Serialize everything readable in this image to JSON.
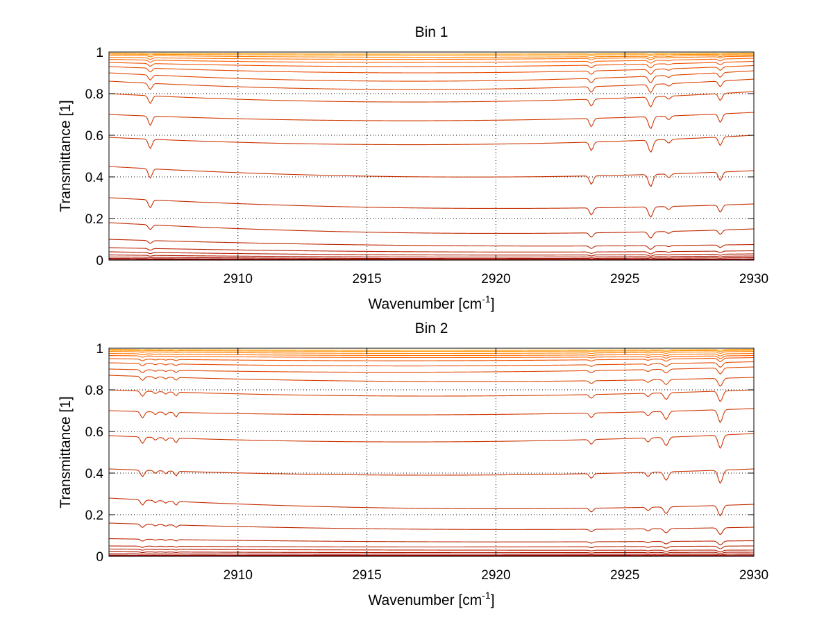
{
  "chart_data": [
    {
      "type": "line",
      "title": "Bin 1",
      "xlabel": "Wavenumber [cm",
      "xlabel_sup": "-1",
      "xlabel_end": "]",
      "ylabel": "Transmittance [1]",
      "xlim": [
        2905,
        2930
      ],
      "ylim": [
        0,
        1
      ],
      "xticks": [
        2910,
        2915,
        2920,
        2925,
        2930
      ],
      "xtick_labels": [
        "2910",
        "2915",
        "2920",
        "2925",
        "2930"
      ],
      "yticks": [
        0,
        0.2,
        0.4,
        0.6,
        0.8,
        1
      ],
      "ytick_labels": [
        "0",
        "0.2",
        "0.4",
        "0.6",
        "0.8",
        "1"
      ],
      "grid": true,
      "absorption_lines": [
        {
          "x": 2906.6,
          "depth": 1.0,
          "width": 0.1
        },
        {
          "x": 2923.7,
          "depth": 0.9,
          "width": 0.1
        },
        {
          "x": 2926.0,
          "depth": 1.3,
          "width": 0.12
        },
        {
          "x": 2926.7,
          "depth": 0.4,
          "width": 0.1
        },
        {
          "x": 2928.7,
          "depth": 0.9,
          "width": 0.1
        }
      ],
      "series": [
        {
          "level_start": 0.995,
          "level_mid": 0.99,
          "level_end": 0.995,
          "color": "#ff9f00"
        },
        {
          "level_start": 0.99,
          "level_mid": 0.985,
          "level_end": 0.99,
          "color": "#ff9000"
        },
        {
          "level_start": 0.985,
          "level_mid": 0.975,
          "level_end": 0.985,
          "color": "#ff8000"
        },
        {
          "level_start": 0.975,
          "level_mid": 0.965,
          "level_end": 0.98,
          "color": "#ff7000"
        },
        {
          "level_start": 0.965,
          "level_mid": 0.95,
          "level_end": 0.97,
          "color": "#ff6000"
        },
        {
          "level_start": 0.95,
          "level_mid": 0.93,
          "level_end": 0.955,
          "color": "#f05000"
        },
        {
          "level_start": 0.93,
          "level_mid": 0.9,
          "level_end": 0.935,
          "color": "#e84a00"
        },
        {
          "level_start": 0.9,
          "level_mid": 0.86,
          "level_end": 0.91,
          "color": "#e04400"
        },
        {
          "level_start": 0.86,
          "level_mid": 0.82,
          "level_end": 0.87,
          "color": "#d84000"
        },
        {
          "level_start": 0.8,
          "level_mid": 0.76,
          "level_end": 0.81,
          "color": "#d43c00"
        },
        {
          "level_start": 0.7,
          "level_mid": 0.67,
          "level_end": 0.71,
          "color": "#d03800"
        },
        {
          "level_start": 0.59,
          "level_mid": 0.555,
          "level_end": 0.6,
          "color": "#cc3400"
        },
        {
          "level_start": 0.45,
          "level_mid": 0.4,
          "level_end": 0.43,
          "color": "#c83000"
        },
        {
          "level_start": 0.3,
          "level_mid": 0.25,
          "level_end": 0.27,
          "color": "#c42c00"
        },
        {
          "level_start": 0.18,
          "level_mid": 0.13,
          "level_end": 0.15,
          "color": "#c02800"
        },
        {
          "level_start": 0.1,
          "level_mid": 0.07,
          "level_end": 0.075,
          "color": "#bc2400"
        },
        {
          "level_start": 0.06,
          "level_mid": 0.04,
          "level_end": 0.045,
          "color": "#b82000"
        },
        {
          "level_start": 0.04,
          "level_mid": 0.025,
          "level_end": 0.03,
          "color": "#b41c00"
        },
        {
          "level_start": 0.025,
          "level_mid": 0.015,
          "level_end": 0.02,
          "color": "#b01800"
        },
        {
          "level_start": 0.015,
          "level_mid": 0.008,
          "level_end": 0.012,
          "color": "#a81000"
        },
        {
          "level_start": 0.008,
          "level_mid": 0.004,
          "level_end": 0.006,
          "color": "#a00800"
        },
        {
          "level_start": 0.004,
          "level_mid": 0.002,
          "level_end": 0.003,
          "color": "#980000"
        }
      ]
    },
    {
      "type": "line",
      "title": "Bin 2",
      "xlabel": "Wavenumber [cm",
      "xlabel_sup": "-1",
      "xlabel_end": "]",
      "ylabel": "Transmittance [1]",
      "xlim": [
        2905,
        2930
      ],
      "ylim": [
        0,
        1
      ],
      "xticks": [
        2910,
        2915,
        2920,
        2925,
        2930
      ],
      "xtick_labels": [
        "2910",
        "2915",
        "2920",
        "2925",
        "2930"
      ],
      "yticks": [
        0,
        0.2,
        0.4,
        0.6,
        0.8,
        1
      ],
      "ytick_labels": [
        "0",
        "0.2",
        "0.4",
        "0.6",
        "0.8",
        "1"
      ],
      "grid": true,
      "absorption_lines": [
        {
          "x": 2906.3,
          "depth": 0.7,
          "width": 0.1
        },
        {
          "x": 2906.8,
          "depth": 0.3,
          "width": 0.08
        },
        {
          "x": 2907.2,
          "depth": 0.3,
          "width": 0.08
        },
        {
          "x": 2907.6,
          "depth": 0.5,
          "width": 0.08
        },
        {
          "x": 2923.7,
          "depth": 0.5,
          "width": 0.1
        },
        {
          "x": 2925.9,
          "depth": 0.45,
          "width": 0.1
        },
        {
          "x": 2926.6,
          "depth": 0.9,
          "width": 0.12
        },
        {
          "x": 2928.7,
          "depth": 1.4,
          "width": 0.12
        }
      ],
      "series": [
        {
          "level_start": 0.995,
          "level_mid": 0.99,
          "level_end": 0.995,
          "color": "#ff9f00"
        },
        {
          "level_start": 0.99,
          "level_mid": 0.985,
          "level_end": 0.99,
          "color": "#ff9000"
        },
        {
          "level_start": 0.985,
          "level_mid": 0.975,
          "level_end": 0.985,
          "color": "#ff8000"
        },
        {
          "level_start": 0.975,
          "level_mid": 0.965,
          "level_end": 0.975,
          "color": "#ff7000"
        },
        {
          "level_start": 0.965,
          "level_mid": 0.955,
          "level_end": 0.965,
          "color": "#ff6000"
        },
        {
          "level_start": 0.95,
          "level_mid": 0.94,
          "level_end": 0.955,
          "color": "#f05000"
        },
        {
          "level_start": 0.93,
          "level_mid": 0.915,
          "level_end": 0.935,
          "color": "#e84a00"
        },
        {
          "level_start": 0.9,
          "level_mid": 0.885,
          "level_end": 0.91,
          "color": "#e04400"
        },
        {
          "level_start": 0.87,
          "level_mid": 0.84,
          "level_end": 0.86,
          "color": "#d84000"
        },
        {
          "level_start": 0.8,
          "level_mid": 0.77,
          "level_end": 0.8,
          "color": "#d43c00"
        },
        {
          "level_start": 0.7,
          "level_mid": 0.68,
          "level_end": 0.71,
          "color": "#d03800"
        },
        {
          "level_start": 0.58,
          "level_mid": 0.55,
          "level_end": 0.59,
          "color": "#cc3400"
        },
        {
          "level_start": 0.42,
          "level_mid": 0.39,
          "level_end": 0.42,
          "color": "#c83000"
        },
        {
          "level_start": 0.28,
          "level_mid": 0.23,
          "level_end": 0.25,
          "color": "#c42c00"
        },
        {
          "level_start": 0.16,
          "level_mid": 0.13,
          "level_end": 0.14,
          "color": "#c02800"
        },
        {
          "level_start": 0.085,
          "level_mid": 0.07,
          "level_end": 0.075,
          "color": "#bc2400"
        },
        {
          "level_start": 0.05,
          "level_mid": 0.045,
          "level_end": 0.05,
          "color": "#b82000"
        },
        {
          "level_start": 0.035,
          "level_mid": 0.03,
          "level_end": 0.03,
          "color": "#b41c00"
        },
        {
          "level_start": 0.022,
          "level_mid": 0.018,
          "level_end": 0.02,
          "color": "#b01800"
        },
        {
          "level_start": 0.012,
          "level_mid": 0.01,
          "level_end": 0.011,
          "color": "#a81000"
        },
        {
          "level_start": 0.006,
          "level_mid": 0.005,
          "level_end": 0.006,
          "color": "#a00800"
        },
        {
          "level_start": 0.003,
          "level_mid": 0.002,
          "level_end": 0.002,
          "color": "#980000"
        }
      ]
    }
  ]
}
